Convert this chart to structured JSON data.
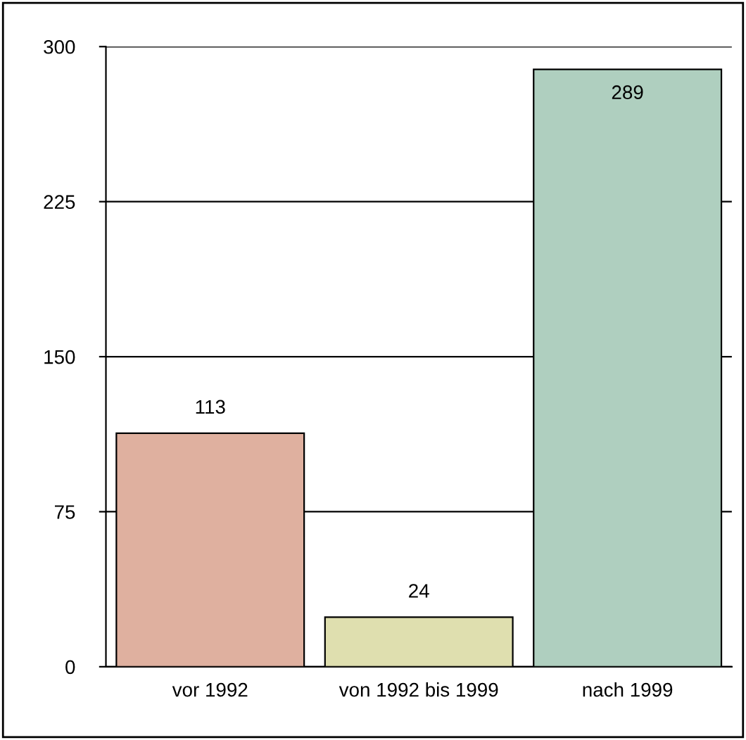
{
  "chart_data": {
    "type": "bar",
    "categories": [
      "vor 1992",
      "von 1992 bis 1999",
      "nach 1999"
    ],
    "values": [
      113,
      24,
      289
    ],
    "colors": [
      "#dfb09f",
      "#dfdfaf",
      "#afcfbf"
    ],
    "ylim": [
      0,
      300
    ],
    "yticks": [
      0,
      75,
      150,
      225,
      300
    ],
    "grid": "y",
    "data_labels": true
  }
}
